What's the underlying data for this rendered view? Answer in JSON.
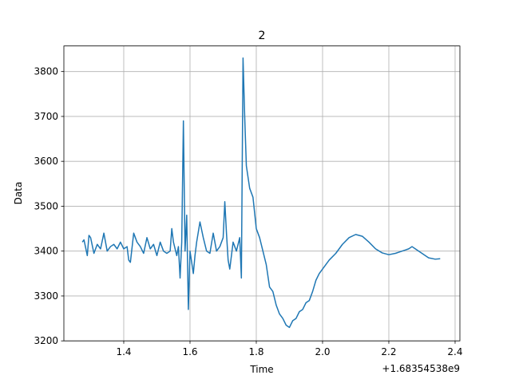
{
  "chart_data": {
    "type": "line",
    "title": "2",
    "x_label": "Time",
    "y_label": "Data",
    "x_offset_text": "+1.68354538e9",
    "xlim": [
      1.2193,
      2.4145
    ],
    "ylim": [
      3200,
      3857
    ],
    "xticks": [
      1.4,
      1.6,
      1.8,
      {
        "value": 2,
        "label": "2.0"
      },
      2.2,
      2.4
    ],
    "yticks": [
      3200,
      3300,
      3400,
      3500,
      3600,
      3700,
      3800
    ],
    "grid": true,
    "x": [
      1.275,
      1.28,
      1.29,
      1.295,
      1.3,
      1.31,
      1.32,
      1.33,
      1.34,
      1.35,
      1.36,
      1.37,
      1.38,
      1.39,
      1.4,
      1.41,
      1.415,
      1.42,
      1.43,
      1.44,
      1.45,
      1.46,
      1.47,
      1.48,
      1.49,
      1.5,
      1.51,
      1.52,
      1.53,
      1.54,
      1.545,
      1.55,
      1.56,
      1.565,
      1.57,
      1.575,
      1.58,
      1.585,
      1.59,
      1.595,
      1.6,
      1.61,
      1.615,
      1.62,
      1.63,
      1.64,
      1.65,
      1.66,
      1.67,
      1.68,
      1.69,
      1.7,
      1.705,
      1.71,
      1.715,
      1.72,
      1.73,
      1.74,
      1.75,
      1.755,
      1.76,
      1.765,
      1.77,
      1.78,
      1.79,
      1.8,
      1.81,
      1.82,
      1.83,
      1.84,
      1.85,
      1.86,
      1.87,
      1.88,
      1.89,
      1.9,
      1.91,
      1.92,
      1.93,
      1.94,
      1.95,
      1.96,
      1.97,
      1.98,
      1.99,
      2.0,
      2.02,
      2.04,
      2.06,
      2.08,
      2.1,
      2.12,
      2.14,
      2.16,
      2.18,
      2.2,
      2.22,
      2.24,
      2.26,
      2.27,
      2.28,
      2.3,
      2.32,
      2.34,
      2.355
    ],
    "series": [
      {
        "name": "Data",
        "color": "#1f77b4",
        "values": [
          3420,
          3425,
          3390,
          3435,
          3430,
          3395,
          3415,
          3405,
          3440,
          3400,
          3410,
          3415,
          3405,
          3420,
          3405,
          3410,
          3380,
          3375,
          3440,
          3420,
          3410,
          3395,
          3430,
          3405,
          3415,
          3390,
          3420,
          3400,
          3395,
          3400,
          3450,
          3420,
          3390,
          3410,
          3340,
          3420,
          3690,
          3400,
          3480,
          3270,
          3400,
          3350,
          3390,
          3420,
          3465,
          3430,
          3400,
          3395,
          3440,
          3400,
          3410,
          3430,
          3510,
          3440,
          3380,
          3360,
          3420,
          3400,
          3430,
          3340,
          3830,
          3700,
          3590,
          3540,
          3520,
          3450,
          3430,
          3400,
          3370,
          3320,
          3310,
          3280,
          3260,
          3250,
          3235,
          3230,
          3245,
          3250,
          3265,
          3270,
          3285,
          3290,
          3310,
          3335,
          3350,
          3360,
          3380,
          3395,
          3415,
          3430,
          3437,
          3433,
          3420,
          3405,
          3396,
          3392,
          3395,
          3400,
          3405,
          3410,
          3405,
          3395,
          3385,
          3382,
          3383
        ]
      }
    ]
  }
}
